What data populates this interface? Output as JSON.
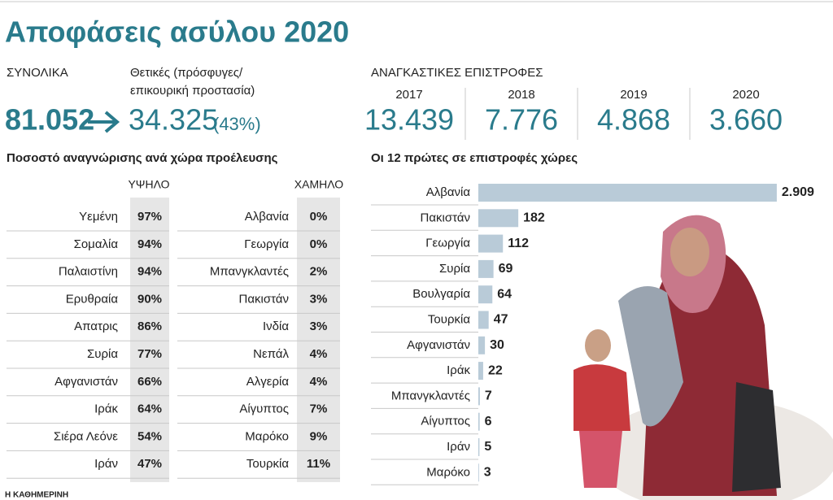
{
  "header": {
    "title": "Αποφάσεις ασύλου 2020"
  },
  "totals": {
    "total_label": "ΣΥΝΟΛΙΚΑ",
    "total_value": "81.052",
    "positive_label": [
      "Θετικές (πρόσφυγες/",
      "επικουρική προστασία)"
    ],
    "positive_value": "34.325",
    "positive_share": "(43%)"
  },
  "forced_returns": {
    "label": "ΑΝΑΓΚΑΣΤΙΚΕΣ ΕΠΙΣΤΡΟΦΕΣ",
    "years": [
      "2017",
      "2018",
      "2019",
      "2020"
    ],
    "values": [
      "13.439",
      "7.776",
      "4.868",
      "3.660"
    ]
  },
  "recognition": {
    "title": "Ποσοστό αναγνώρισης ανά χώρα προέλευσης",
    "high": {
      "label": "ΥΨΗΛΟ",
      "countries": [
        "Υεμένη",
        "Σομαλία",
        "Παλαιστίνη",
        "Ερυθραία",
        "Απατρις",
        "Συρία",
        "Αφγανιστάν",
        "Ιράκ",
        "Σιέρα Λεόνε",
        "Ιράν"
      ],
      "rates": [
        "97%",
        "94%",
        "94%",
        "90%",
        "86%",
        "77%",
        "66%",
        "64%",
        "54%",
        "47%"
      ]
    },
    "low": {
      "label": "ΧΑΜΗΛΟ",
      "countries": [
        "Αλβανία",
        "Γεωργία",
        "Μπανγκλαντές",
        "Πακιστάν",
        "Ινδία",
        "Νεπάλ",
        "Αλγερία",
        "Αίγυπτος",
        "Μαρόκο",
        "Τουρκία"
      ],
      "rates": [
        "0%",
        "0%",
        "2%",
        "3%",
        "3%",
        "4%",
        "4%",
        "7%",
        "9%",
        "11%"
      ]
    }
  },
  "returns_by_country": {
    "title": "Οι 12 πρώτες σε επιστροφές χώρες",
    "categories": [
      "Αλβανία",
      "Πακιστάν",
      "Γεωργία",
      "Συρία",
      "Βουλγαρία",
      "Τουρκία",
      "Αφγανιστάν",
      "Ιράκ",
      "Μπανγκλαντές",
      "Αίγυπτος",
      "Ιράν",
      "Μαρόκο"
    ],
    "values": [
      2909,
      182,
      112,
      69,
      64,
      47,
      30,
      22,
      7,
      6,
      5,
      3
    ],
    "value_labels": [
      "2.909",
      "182",
      "112",
      "69",
      "64",
      "47",
      "30",
      "22",
      "7",
      "6",
      "5",
      "3"
    ],
    "color": "#b9cbd8"
  },
  "footer": {
    "source": "Η ΚΑΘΗΜΕΡΙΝΗ"
  }
}
